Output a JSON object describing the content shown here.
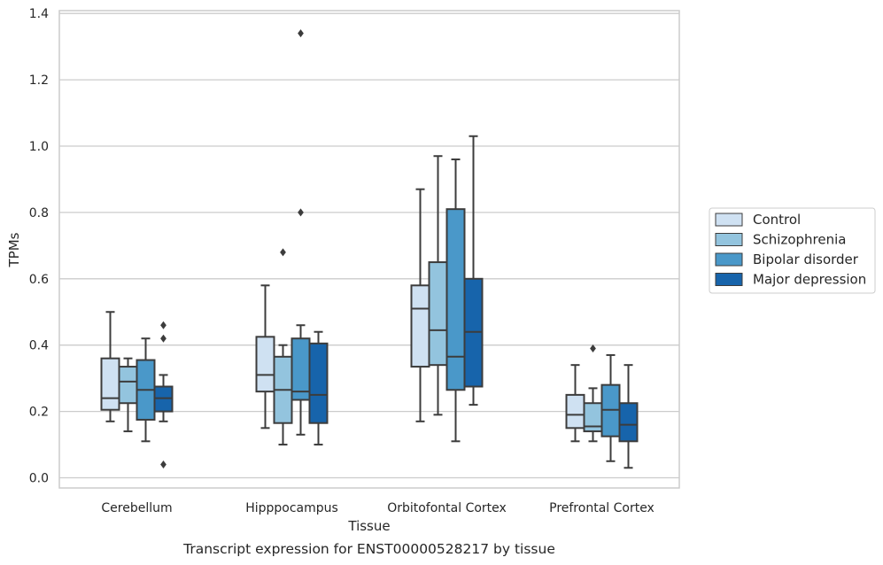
{
  "chart_data": {
    "type": "box",
    "title": "",
    "caption": "Transcript expression for ENST00000528217 by tissue",
    "xlabel": "Tissue",
    "ylabel": "TPMs",
    "ylim": [
      -0.03,
      1.41
    ],
    "yticks": [
      "0.0",
      "0.2",
      "0.4",
      "0.6",
      "0.8",
      "1.0",
      "1.2",
      "1.4"
    ],
    "categories": [
      "Cerebellum",
      "Hipppocampus",
      "Orbitofontal Cortex",
      "Prefrontal Cortex"
    ],
    "grid": "horizontal",
    "legend_position": "right",
    "series": [
      {
        "name": "Control",
        "color": "#cfe1f2",
        "boxes": [
          {
            "whislo": 0.17,
            "q1": 0.205,
            "med": 0.24,
            "q3": 0.36,
            "whishi": 0.5,
            "fliers": []
          },
          {
            "whislo": 0.15,
            "q1": 0.26,
            "med": 0.31,
            "q3": 0.425,
            "whishi": 0.58,
            "fliers": []
          },
          {
            "whislo": 0.17,
            "q1": 0.335,
            "med": 0.51,
            "q3": 0.58,
            "whishi": 0.87,
            "fliers": []
          },
          {
            "whislo": 0.11,
            "q1": 0.15,
            "med": 0.19,
            "q3": 0.25,
            "whishi": 0.34,
            "fliers": []
          }
        ]
      },
      {
        "name": "Schizophrenia",
        "color": "#93c4de",
        "boxes": [
          {
            "whislo": 0.14,
            "q1": 0.225,
            "med": 0.29,
            "q3": 0.335,
            "whishi": 0.36,
            "fliers": []
          },
          {
            "whislo": 0.1,
            "q1": 0.165,
            "med": 0.265,
            "q3": 0.365,
            "whishi": 0.4,
            "fliers": [
              0.68
            ]
          },
          {
            "whislo": 0.19,
            "q1": 0.34,
            "med": 0.445,
            "q3": 0.65,
            "whishi": 0.97,
            "fliers": []
          },
          {
            "whislo": 0.11,
            "q1": 0.14,
            "med": 0.155,
            "q3": 0.225,
            "whishi": 0.27,
            "fliers": [
              0.39
            ]
          }
        ]
      },
      {
        "name": "Bipolar disorder",
        "color": "#4a98c9",
        "boxes": [
          {
            "whislo": 0.11,
            "q1": 0.175,
            "med": 0.265,
            "q3": 0.355,
            "whishi": 0.42,
            "fliers": []
          },
          {
            "whislo": 0.13,
            "q1": 0.235,
            "med": 0.26,
            "q3": 0.42,
            "whishi": 0.46,
            "fliers": [
              0.8,
              1.34
            ]
          },
          {
            "whislo": 0.11,
            "q1": 0.265,
            "med": 0.365,
            "q3": 0.81,
            "whishi": 0.96,
            "fliers": []
          },
          {
            "whislo": 0.05,
            "q1": 0.125,
            "med": 0.205,
            "q3": 0.28,
            "whishi": 0.37,
            "fliers": []
          }
        ]
      },
      {
        "name": "Major depression",
        "color": "#1764ab",
        "boxes": [
          {
            "whislo": 0.17,
            "q1": 0.2,
            "med": 0.24,
            "q3": 0.275,
            "whishi": 0.31,
            "fliers": [
              0.04,
              0.42,
              0.46
            ]
          },
          {
            "whislo": 0.1,
            "q1": 0.165,
            "med": 0.25,
            "q3": 0.405,
            "whishi": 0.44,
            "fliers": []
          },
          {
            "whislo": 0.22,
            "q1": 0.275,
            "med": 0.44,
            "q3": 0.6,
            "whishi": 1.03,
            "fliers": []
          },
          {
            "whislo": 0.03,
            "q1": 0.11,
            "med": 0.16,
            "q3": 0.225,
            "whishi": 0.34,
            "fliers": []
          }
        ]
      }
    ]
  }
}
